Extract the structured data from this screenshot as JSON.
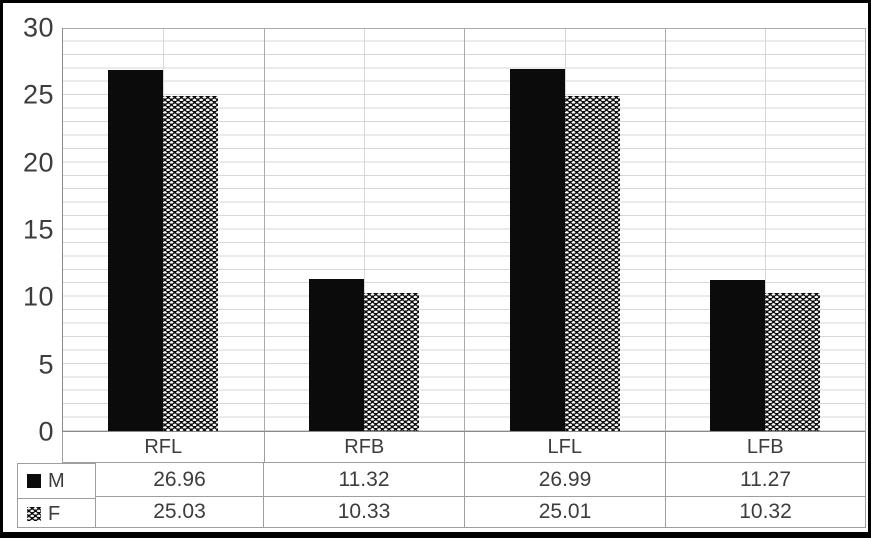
{
  "chart_data": {
    "type": "bar",
    "variant": "clustered-column-with-data-table",
    "title": "",
    "xlabel": "",
    "ylabel": "",
    "categories": [
      "RFL",
      "RFB",
      "LFL",
      "LFB"
    ],
    "series": [
      {
        "name": "M",
        "fill": "solid-black",
        "values": [
          26.96,
          11.32,
          26.99,
          11.27
        ]
      },
      {
        "name": "F",
        "fill": "white-dot-checker-on-black",
        "values": [
          25.03,
          10.33,
          25.01,
          10.32
        ]
      }
    ],
    "ylim": [
      0,
      30
    ],
    "yticks": [
      0,
      5,
      10,
      15,
      20,
      25,
      30
    ],
    "minor_gridline_step_y": 1,
    "grid": true,
    "legend_position": "data-table-left-column",
    "value_decimals": 2
  },
  "colors": {
    "bar_solid": "#0b0b0b",
    "pattern_background": "#0c0c0c",
    "pattern_dot": "#f5f5f5",
    "text": "#3d3d3d",
    "minor_gridline": "#d7d7d7",
    "boundary_gridline": "#ababab",
    "axis_line": "#8a8a8a",
    "table_border": "#9e9e9e",
    "figure_border": "#000000",
    "background": "#ffffff"
  }
}
